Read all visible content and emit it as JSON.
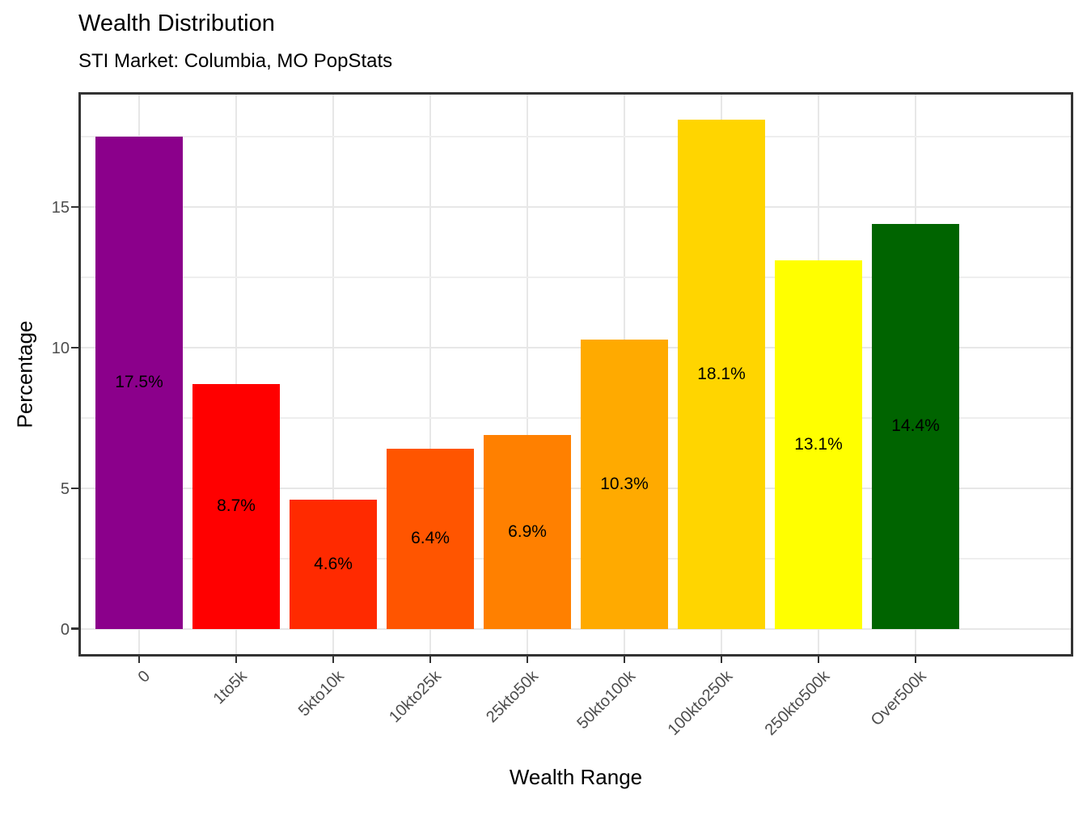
{
  "chart_data": {
    "type": "bar",
    "title": "Wealth Distribution",
    "subtitle": "STI Market: Columbia, MO PopStats",
    "xlabel": "Wealth Range",
    "ylabel": "Percentage",
    "categories": [
      "0",
      "1to5k",
      "5kto10k",
      "10kto25k",
      "25kto50k",
      "50kto100k",
      "100kto250k",
      "250kto500k",
      "Over500k"
    ],
    "values": [
      17.5,
      8.7,
      4.6,
      6.4,
      6.9,
      10.3,
      18.1,
      13.1,
      14.4
    ],
    "bar_labels": [
      "17.5%",
      "8.7%",
      "4.6%",
      "6.4%",
      "6.9%",
      "10.3%",
      "18.1%",
      "13.1%",
      "14.4%"
    ],
    "bar_colors": [
      "#8B008B",
      "#FF0000",
      "#FF2A00",
      "#FF5500",
      "#FF8000",
      "#FFAA00",
      "#FFD500",
      "#FFFF00",
      "#006400"
    ],
    "y_major_ticks": [
      0,
      5,
      10,
      15
    ],
    "y_minor_ticks": [
      2.5,
      7.5,
      12.5,
      17.5
    ],
    "ylim": [
      -0.9,
      19.0
    ],
    "grid": true,
    "legend": "none",
    "bar_label_position": "middle",
    "colors": {
      "background": "#FFFFFF",
      "panel_background": "#FFFFFF",
      "panel_border": "#333333",
      "grid_major": "#E7E7E7",
      "grid_minor": "#EEEEEE",
      "tick_mark": "#333333",
      "tick_label": "#4D4D4D",
      "title": "#000000",
      "axis_title": "#000000",
      "bar_label": "#000000"
    }
  }
}
